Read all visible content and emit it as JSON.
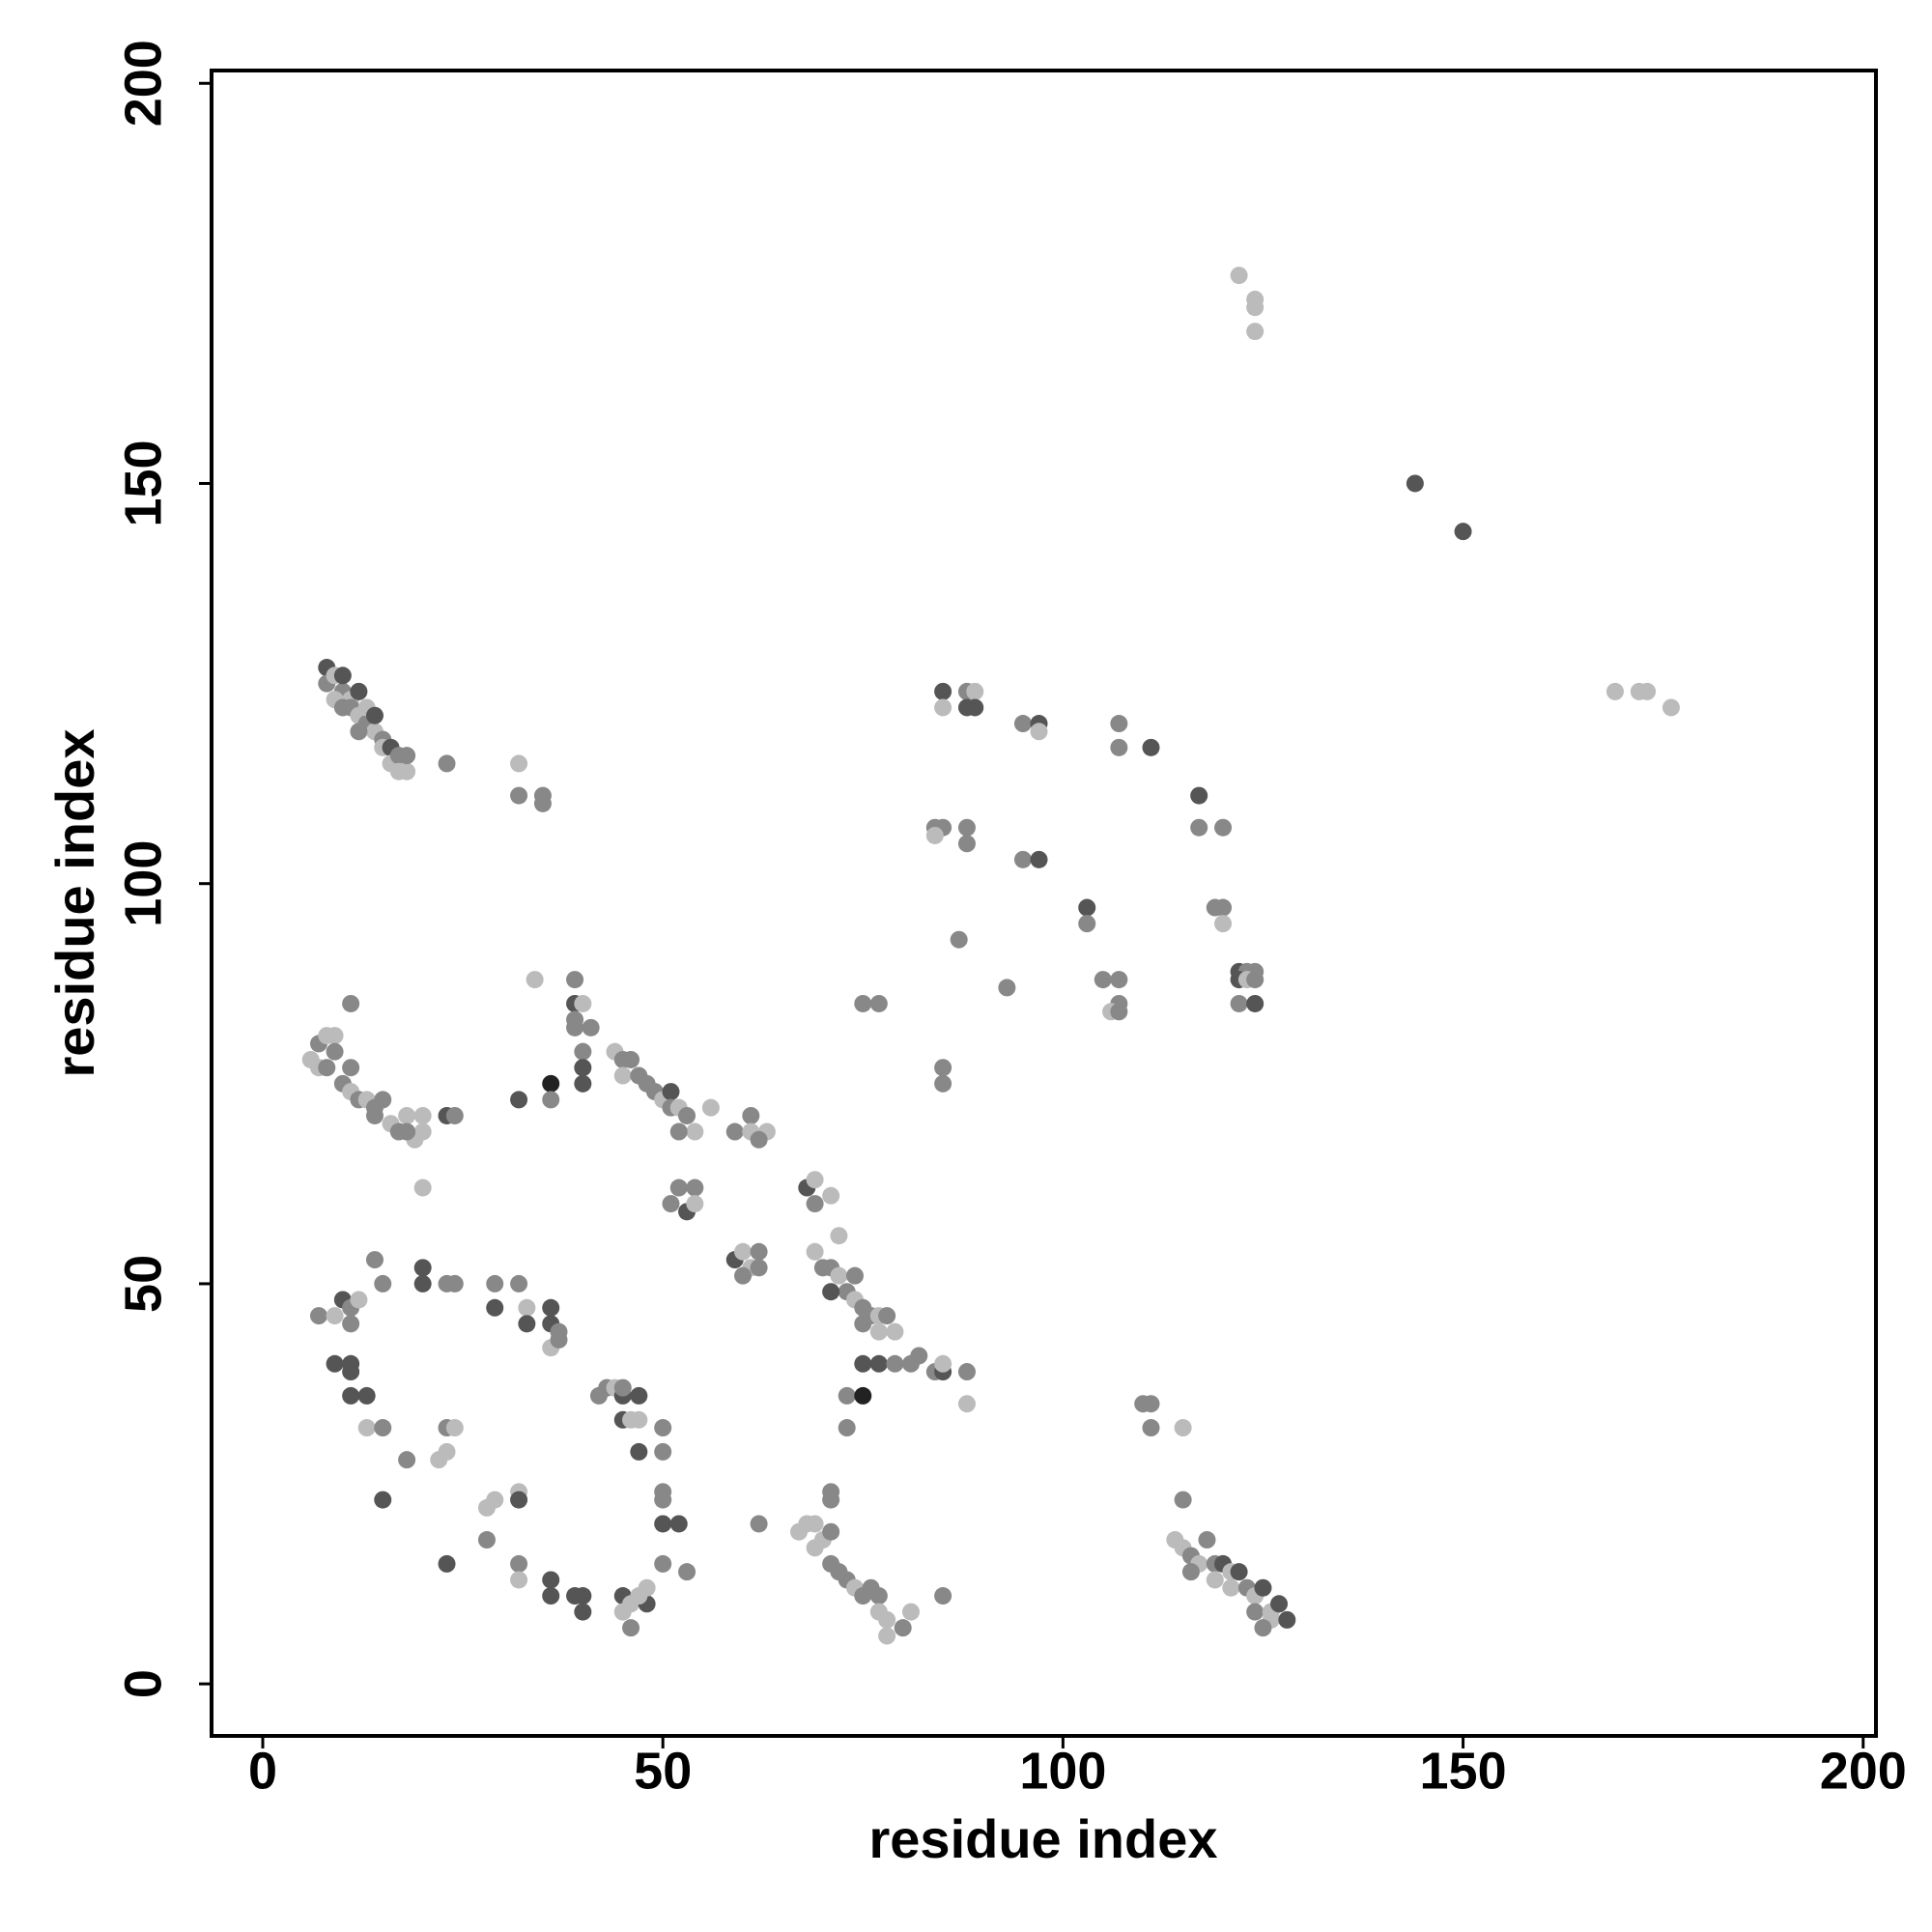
{
  "chart_data": {
    "type": "scatter",
    "xlabel": "residue index",
    "ylabel": "residue index",
    "xlim": [
      -6.4,
      201.6
    ],
    "ylim": [
      -6.5,
      201.6
    ],
    "xticks": [
      0,
      50,
      100,
      150,
      200
    ],
    "yticks": [
      0,
      50,
      100,
      150,
      200
    ],
    "grid": false,
    "x": [
      122,
      124,
      124,
      124,
      144,
      150,
      169,
      172,
      173,
      176,
      8,
      8,
      9,
      10,
      10,
      11,
      11,
      12,
      12,
      13,
      13,
      14,
      14,
      15,
      15,
      16,
      16,
      17,
      17,
      18,
      18,
      9,
      10,
      12,
      23,
      32,
      32,
      35,
      35,
      85,
      85,
      88,
      89,
      89,
      88,
      95,
      97,
      97,
      107,
      107,
      111,
      117,
      117,
      120,
      84,
      85,
      84,
      88,
      88,
      95,
      97,
      103,
      103,
      119,
      120,
      120,
      87,
      93,
      105,
      107,
      107,
      106,
      107,
      122,
      123,
      124,
      122,
      123,
      124,
      122,
      124,
      75,
      77,
      85,
      85,
      6,
      7,
      8,
      9,
      7,
      9,
      8,
      11,
      10,
      11,
      12,
      13,
      14,
      15,
      14,
      16,
      17,
      18,
      19,
      20,
      20,
      18,
      11,
      23,
      24,
      20,
      32,
      36,
      36,
      39,
      34,
      39,
      40,
      39,
      39,
      41,
      40,
      40,
      40,
      44,
      45,
      46,
      45,
      47,
      48,
      49,
      50,
      51,
      51,
      52,
      53,
      54,
      52,
      56,
      59,
      61,
      61,
      63,
      62,
      52,
      54,
      51,
      53,
      54,
      59,
      60,
      62,
      61,
      60,
      62,
      68,
      69,
      69,
      71,
      69,
      70,
      71,
      72,
      74,
      73,
      74,
      75,
      76,
      77,
      78,
      77,
      79,
      71,
      72,
      75,
      75,
      77,
      79,
      81,
      82,
      84,
      85,
      85,
      88,
      88,
      73,
      75,
      73,
      110,
      111,
      111,
      115,
      115,
      114,
      115,
      116,
      117,
      118,
      119,
      120,
      121,
      122,
      121,
      123,
      124,
      125,
      124,
      126,
      127,
      126,
      128,
      125,
      116,
      119,
      67,
      68,
      69,
      70,
      71,
      71,
      72,
      73,
      74,
      75,
      76,
      77,
      77,
      78,
      78,
      80,
      81,
      71,
      71,
      69,
      85,
      62,
      7,
      9,
      10,
      11,
      12,
      11,
      9,
      11,
      11,
      11,
      13,
      13,
      15,
      15,
      14,
      15,
      18,
      20,
      20,
      23,
      24,
      23,
      24,
      22,
      23,
      23,
      28,
      28,
      29,
      32,
      32,
      32,
      32,
      29,
      29,
      32,
      33,
      33,
      36,
      36,
      37,
      36,
      37,
      36,
      36,
      39,
      40,
      40,
      42,
      43,
      44,
      45,
      45,
      47,
      45,
      46,
      47,
      47,
      50,
      50,
      50,
      50,
      50,
      52,
      50,
      53,
      45,
      46,
      48,
      47,
      45,
      48,
      46
    ],
    "y": [
      176,
      173,
      172,
      169,
      150,
      144,
      124,
      124,
      124,
      122,
      127,
      125,
      126,
      124,
      126,
      123,
      122,
      121,
      124,
      120,
      122,
      119,
      121,
      118,
      117,
      117,
      115,
      116,
      114,
      114,
      116,
      123,
      122,
      119,
      115,
      115,
      111,
      111,
      110,
      124,
      122,
      124,
      124,
      122,
      122,
      120,
      120,
      119,
      120,
      117,
      117,
      111,
      107,
      107,
      107,
      107,
      106,
      107,
      105,
      103,
      103,
      97,
      95,
      97,
      97,
      95,
      93,
      87,
      88,
      88,
      85,
      84,
      84,
      89,
      89,
      89,
      88,
      88,
      88,
      85,
      85,
      85,
      85,
      77,
      75,
      78,
      80,
      81,
      81,
      77,
      79,
      77,
      77,
      75,
      74,
      73,
      73,
      72,
      73,
      71,
      70,
      69,
      71,
      68,
      71,
      69,
      69,
      85,
      71,
      71,
      62,
      73,
      75,
      73,
      88,
      88,
      85,
      85,
      83,
      82,
      82,
      79,
      77,
      75,
      79,
      78,
      78,
      76,
      76,
      75,
      74,
      73,
      74,
      72,
      72,
      71,
      69,
      69,
      72,
      69,
      71,
      69,
      69,
      68,
      62,
      62,
      60,
      59,
      60,
      53,
      54,
      54,
      52,
      51,
      52,
      62,
      63,
      60,
      61,
      54,
      52,
      52,
      51,
      51,
      49,
      48,
      47,
      46,
      46,
      46,
      44,
      44,
      49,
      56,
      45,
      40,
      40,
      40,
      40,
      41,
      39,
      39,
      40,
      39,
      35,
      36,
      36,
      32,
      35,
      35,
      32,
      32,
      23,
      18,
      17,
      16,
      15,
      18,
      15,
      15,
      14,
      14,
      12,
      12,
      11,
      12,
      9,
      9,
      10,
      8,
      8,
      7,
      14,
      13,
      19,
      20,
      20,
      18,
      19,
      15,
      14,
      13,
      12,
      11,
      12,
      11,
      9,
      8,
      6,
      7,
      9,
      24,
      23,
      17,
      11,
      20,
      46,
      46,
      48,
      47,
      48,
      45,
      40,
      40,
      39,
      36,
      36,
      32,
      32,
      23,
      53,
      50,
      28,
      52,
      50,
      50,
      50,
      32,
      32,
      28,
      29,
      15,
      18,
      22,
      23,
      24,
      23,
      15,
      13,
      50,
      47,
      50,
      47,
      45,
      47,
      45,
      44,
      42,
      43,
      13,
      11,
      11,
      11,
      9,
      36,
      37,
      37,
      36,
      37,
      36,
      33,
      33,
      33,
      29,
      32,
      29,
      24,
      23,
      20,
      20,
      15,
      14,
      11,
      10,
      10,
      11,
      9,
      12,
      7
    ],
    "colors": [
      "#bbbbbb",
      "#bbbbbb",
      "#bbbbbb",
      "#bbbbbb",
      "#555555",
      "#555555",
      "#bbbbbb",
      "#bbbbbb",
      "#bbbbbb",
      "#bbbbbb",
      "#555555",
      "#888888",
      "#bbbbbb",
      "#888888",
      "#555555",
      "#bbbbbb",
      "#888888",
      "#bbbbbb",
      "#555555",
      "#888888",
      "#bbbbbb",
      "#bbbbbb",
      "#555555",
      "#888888",
      "#bbbbbb",
      "#555555",
      "#bbbbbb",
      "#888888",
      "#bbbbbb",
      "#bbbbbb",
      "#888888",
      "#bbbbbb",
      "#888888",
      "#888888",
      "#888888",
      "#bbbbbb",
      "#888888",
      "#888888",
      "#888888",
      "#555555",
      "#bbbbbb",
      "#888888",
      "#bbbbbb",
      "#555555",
      "#555555",
      "#888888",
      "#555555",
      "#bbbbbb",
      "#888888",
      "#888888",
      "#555555",
      "#555555",
      "#888888",
      "#888888",
      "#888888",
      "#888888",
      "#bbbbbb",
      "#888888",
      "#888888",
      "#888888",
      "#555555",
      "#555555",
      "#888888",
      "#888888",
      "#888888",
      "#bbbbbb",
      "#888888",
      "#888888",
      "#888888",
      "#888888",
      "#888888",
      "#bbbbbb",
      "#888888",
      "#555555",
      "#888888",
      "#888888",
      "#555555",
      "#bbbbbb",
      "#888888",
      "#888888",
      "#555555",
      "#888888",
      "#888888",
      "#888888",
      "#888888",
      "#bbbbbb",
      "#888888",
      "#bbbbbb",
      "#bbbbbb",
      "#bbbbbb",
      "#888888",
      "#888888",
      "#888888",
      "#888888",
      "#bbbbbb",
      "#888888",
      "#bbbbbb",
      "#888888",
      "#888888",
      "#888888",
      "#bbbbbb",
      "#888888",
      "#bbbbbb",
      "#bbbbbb",
      "#bbbbbb",
      "#bbbbbb",
      "#888888",
      "#888888",
      "#555555",
      "#888888",
      "#bbbbbb",
      "#555555",
      "#222222",
      "#888888",
      "#888888",
      "#bbbbbb",
      "#555555",
      "#bbbbbb",
      "#888888",
      "#888888",
      "#888888",
      "#888888",
      "#555555",
      "#555555",
      "#bbbbbb",
      "#888888",
      "#888888",
      "#bbbbbb",
      "#888888",
      "#888888",
      "#888888",
      "#bbbbbb",
      "#555555",
      "#888888",
      "#bbbbbb",
      "#888888",
      "#bbbbbb",
      "#888888",
      "#bbbbbb",
      "#888888",
      "#888888",
      "#bbbbbb",
      "#bbbbbb",
      "#888888",
      "#888888",
      "#888888",
      "#888888",
      "#555555",
      "#bbbbbb",
      "#555555",
      "#bbbbbb",
      "#888888",
      "#bbbbbb",
      "#888888",
      "#888888",
      "#555555",
      "#bbbbbb",
      "#888888",
      "#bbbbbb",
      "#bbbbbb",
      "#888888",
      "#888888",
      "#bbbbbb",
      "#888888",
      "#888888",
      "#bbbbbb",
      "#888888",
      "#888888",
      "#bbbbbb",
      "#888888",
      "#bbbbbb",
      "#bbbbbb",
      "#555555",
      "#bbbbbb",
      "#888888",
      "#555555",
      "#555555",
      "#888888",
      "#888888",
      "#888888",
      "#888888",
      "#555555",
      "#bbbbbb",
      "#888888",
      "#bbbbbb",
      "#888888",
      "#222222",
      "#888888",
      "#888888",
      "#888888",
      "#888888",
      "#bbbbbb",
      "#888888",
      "#bbbbbb",
      "#bbbbbb",
      "#888888",
      "#bbbbbb",
      "#888888",
      "#888888",
      "#555555",
      "#bbbbbb",
      "#555555",
      "#bbbbbb",
      "#888888",
      "#bbbbbb",
      "#555555",
      "#888888",
      "#bbbbbb",
      "#555555",
      "#bbbbbb",
      "#555555",
      "#888888",
      "#888888",
      "#bbbbbb",
      "#bbbbbb",
      "#bbbbbb",
      "#bbbbbb",
      "#bbbbbb",
      "#888888",
      "#888888",
      "#888888",
      "#888888",
      "#bbbbbb",
      "#888888",
      "#888888",
      "#888888",
      "#bbbbbb",
      "#bbbbbb",
      "#bbbbbb",
      "#888888",
      "#bbbbbb",
      "#888888",
      "#888888",
      "#bbbbbb",
      "#888888",
      "#888888",
      "#888888",
      "#bbbbbb",
      "#555555",
      "#888888",
      "#bbbbbb",
      "#888888",
      "#555555",
      "#555555",
      "#555555",
      "#555555",
      "#555555",
      "#bbbbbb",
      "#888888",
      "#555555",
      "#888888",
      "#888888",
      "#888888",
      "#555555",
      "#555555",
      "#888888",
      "#888888",
      "#888888",
      "#bbbbbb",
      "#bbbbbb",
      "#bbbbbb",
      "#555555",
      "#888888",
      "#bbbbbb",
      "#bbbbbb",
      "#bbbbbb",
      "#555555",
      "#888888",
      "#bbbbbb",
      "#888888",
      "#555555",
      "#888888",
      "#bbbbbb",
      "#555555",
      "#555555",
      "#555555",
      "#888888",
      "#bbbbbb",
      "#888888",
      "#555555",
      "#555555",
      "#555555",
      "#555555",
      "#555555",
      "#888888",
      "#888888",
      "#bbbbbb",
      "#555555",
      "#888888",
      "#555555",
      "#555555",
      "#bbbbbb",
      "#bbbbbb",
      "#555555",
      "#888888",
      "#888888",
      "#888888",
      "#888888",
      "#555555",
      "#555555",
      "#888888",
      "#888888",
      "#555555",
      "#bbbbbb",
      "#555555",
      "#bbbbbb",
      "#bbbbbb",
      "#bbbbbb",
      "#888888"
    ]
  }
}
